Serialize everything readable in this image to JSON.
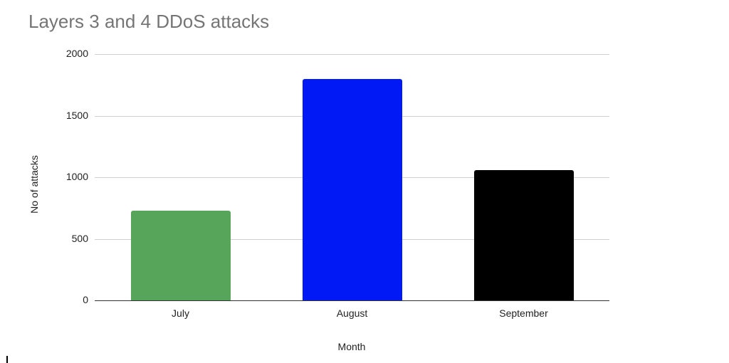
{
  "chart_data": {
    "type": "bar",
    "title": "Layers 3 and 4 DDoS attacks",
    "xlabel": "Month",
    "ylabel": "No of attacks",
    "categories": [
      "July",
      "August",
      "September"
    ],
    "values": [
      730,
      1800,
      1060
    ],
    "colors": [
      "#57a55a",
      "#0019f5",
      "#000000"
    ],
    "yticks": [
      0,
      500,
      1000,
      1500,
      2000
    ],
    "ylim": [
      0,
      2000
    ],
    "grid": true,
    "legend": "none"
  }
}
